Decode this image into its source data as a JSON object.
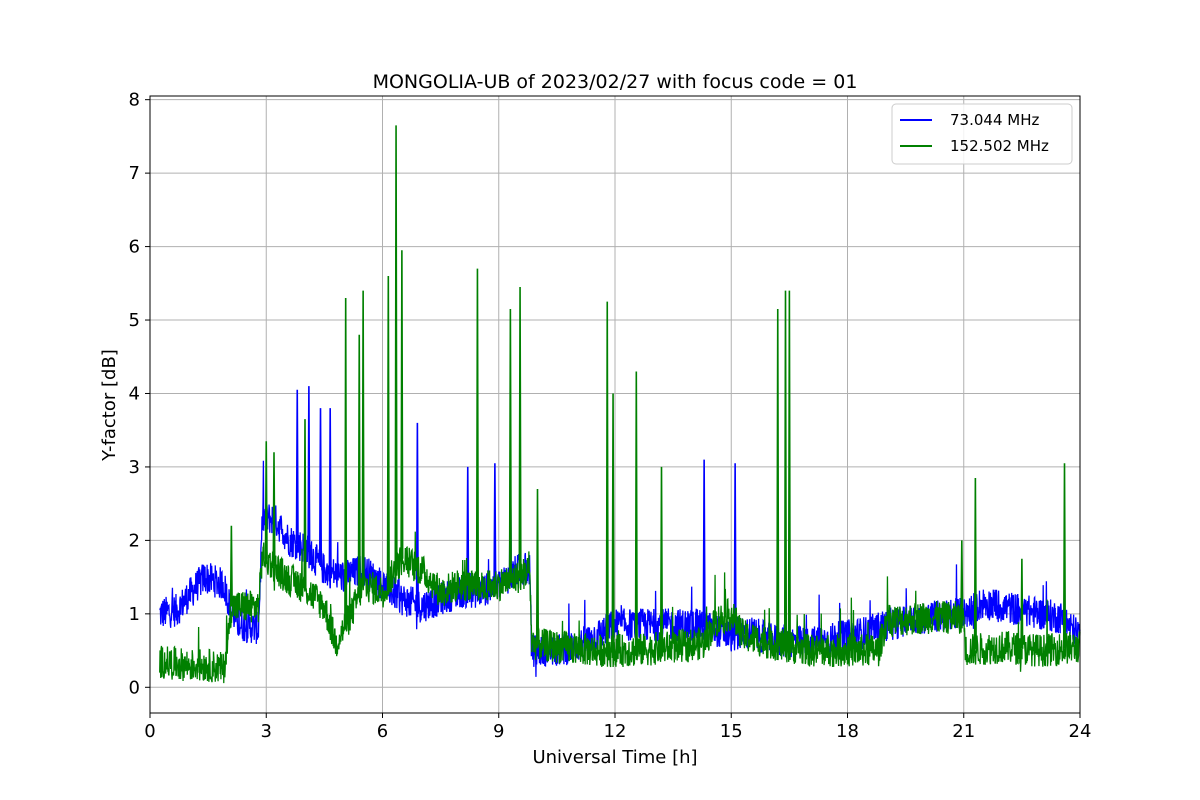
{
  "chart_data": {
    "type": "line",
    "title": "MONGOLIA-UB of 2023/02/27 with focus code = 01",
    "xlabel": "Universal Time [h]",
    "ylabel": "Y-factor [dB]",
    "xlim": [
      0,
      24
    ],
    "ylim": [
      -0.35,
      8.05
    ],
    "xticks": [
      0,
      3,
      6,
      9,
      12,
      15,
      18,
      21,
      24
    ],
    "yticks": [
      0,
      1,
      2,
      3,
      4,
      5,
      6,
      7,
      8
    ],
    "grid": true,
    "legend_position": "top-right",
    "series": [
      {
        "name": "  73.044 MHz",
        "color": "#0000ff",
        "baseline": [
          [
            0.25,
            1.0
          ],
          [
            0.7,
            1.05
          ],
          [
            1.0,
            1.25
          ],
          [
            1.4,
            1.5
          ],
          [
            1.9,
            1.4
          ],
          [
            2.1,
            1.05
          ],
          [
            2.3,
            0.85
          ],
          [
            2.8,
            0.8
          ],
          [
            2.9,
            2.3
          ],
          [
            3.2,
            2.3
          ],
          [
            3.6,
            2.0
          ],
          [
            4.0,
            1.9
          ],
          [
            4.5,
            1.6
          ],
          [
            5.0,
            1.5
          ],
          [
            5.5,
            1.6
          ],
          [
            6.0,
            1.4
          ],
          [
            6.5,
            1.2
          ],
          [
            7.0,
            1.1
          ],
          [
            7.5,
            1.2
          ],
          [
            8.0,
            1.3
          ],
          [
            8.5,
            1.3
          ],
          [
            9.0,
            1.4
          ],
          [
            9.5,
            1.6
          ],
          [
            9.8,
            1.6
          ],
          [
            9.85,
            0.5
          ],
          [
            10.5,
            0.5
          ],
          [
            11.0,
            0.55
          ],
          [
            11.5,
            0.7
          ],
          [
            12.0,
            0.85
          ],
          [
            13.0,
            0.85
          ],
          [
            14.0,
            0.85
          ],
          [
            14.5,
            0.8
          ],
          [
            15.0,
            0.7
          ],
          [
            15.5,
            0.75
          ],
          [
            16.0,
            0.65
          ],
          [
            17.0,
            0.6
          ],
          [
            18.0,
            0.7
          ],
          [
            18.5,
            0.75
          ],
          [
            19.0,
            0.85
          ],
          [
            20.0,
            0.95
          ],
          [
            21.0,
            1.0
          ],
          [
            21.5,
            1.15
          ],
          [
            22.0,
            1.1
          ],
          [
            23.0,
            1.0
          ],
          [
            23.5,
            0.95
          ],
          [
            24.0,
            0.7
          ]
        ],
        "spikes": [
          [
            3.8,
            4.05
          ],
          [
            4.1,
            4.1
          ],
          [
            4.4,
            3.8
          ],
          [
            4.65,
            3.8
          ],
          [
            6.9,
            3.6
          ],
          [
            8.2,
            3.0
          ],
          [
            8.9,
            3.05
          ],
          [
            9.3,
            3.2
          ],
          [
            14.3,
            3.1
          ],
          [
            15.1,
            3.05
          ]
        ]
      },
      {
        "name": "152.502 MHz",
        "color": "#008000",
        "baseline": [
          [
            0.25,
            0.35
          ],
          [
            1.0,
            0.3
          ],
          [
            1.5,
            0.3
          ],
          [
            1.9,
            0.25
          ],
          [
            2.0,
            0.6
          ],
          [
            2.1,
            1.1
          ],
          [
            2.8,
            1.1
          ],
          [
            2.9,
            1.8
          ],
          [
            3.5,
            1.5
          ],
          [
            4.0,
            1.35
          ],
          [
            4.5,
            1.1
          ],
          [
            4.8,
            0.6
          ],
          [
            5.2,
            1.0
          ],
          [
            5.5,
            1.4
          ],
          [
            6.0,
            1.3
          ],
          [
            6.5,
            1.75
          ],
          [
            7.0,
            1.6
          ],
          [
            7.5,
            1.3
          ],
          [
            8.0,
            1.4
          ],
          [
            8.5,
            1.35
          ],
          [
            9.0,
            1.4
          ],
          [
            9.5,
            1.5
          ],
          [
            9.8,
            1.6
          ],
          [
            9.85,
            0.6
          ],
          [
            10.5,
            0.55
          ],
          [
            11.5,
            0.5
          ],
          [
            12.5,
            0.5
          ],
          [
            13.5,
            0.55
          ],
          [
            14.3,
            0.6
          ],
          [
            14.6,
            0.9
          ],
          [
            15.0,
            1.0
          ],
          [
            15.3,
            0.7
          ],
          [
            16.0,
            0.6
          ],
          [
            17.0,
            0.5
          ],
          [
            18.0,
            0.5
          ],
          [
            18.8,
            0.5
          ],
          [
            19.0,
            0.9
          ],
          [
            20.0,
            0.95
          ],
          [
            21.0,
            0.95
          ],
          [
            21.05,
            0.5
          ],
          [
            22.0,
            0.55
          ],
          [
            23.0,
            0.5
          ],
          [
            24.0,
            0.55
          ]
        ],
        "spikes": [
          [
            2.1,
            2.2
          ],
          [
            3.0,
            3.35
          ],
          [
            3.2,
            3.2
          ],
          [
            4.0,
            3.65
          ],
          [
            5.05,
            5.3
          ],
          [
            5.4,
            4.8
          ],
          [
            5.5,
            5.4
          ],
          [
            6.15,
            5.6
          ],
          [
            6.35,
            7.65
          ],
          [
            6.5,
            5.95
          ],
          [
            8.45,
            5.7
          ],
          [
            9.3,
            5.15
          ],
          [
            9.55,
            5.45
          ],
          [
            10.0,
            2.7
          ],
          [
            11.8,
            5.25
          ],
          [
            11.95,
            4.0
          ],
          [
            12.55,
            4.3
          ],
          [
            13.2,
            3.0
          ],
          [
            16.2,
            5.15
          ],
          [
            16.4,
            5.4
          ],
          [
            16.5,
            5.4
          ],
          [
            20.95,
            2.0
          ],
          [
            21.3,
            2.85
          ],
          [
            22.5,
            1.75
          ],
          [
            23.6,
            3.05
          ]
        ]
      }
    ]
  }
}
